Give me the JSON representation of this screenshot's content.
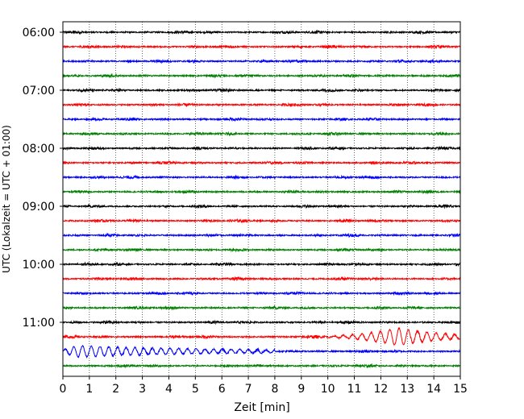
{
  "chart_data": {
    "type": "line",
    "xlabel": "Zeit  [min]",
    "ylabel": "UTC (Lokalzeit = UTC + 01:00)",
    "xlim": [
      0,
      15
    ],
    "x_ticks": [
      0,
      1,
      2,
      3,
      4,
      5,
      6,
      7,
      8,
      9,
      10,
      11,
      12,
      13,
      14,
      15
    ],
    "y_tick_labels": [
      "06:00",
      "07:00",
      "08:00",
      "09:00",
      "10:00",
      "11:00"
    ],
    "trace_interval_minutes": 15,
    "start_time": "06:00",
    "grid": "vertical dotted",
    "trace_colors": [
      "#000000",
      "#ff0000",
      "#0000ff",
      "#008000"
    ],
    "traces": [
      {
        "time": "06:00",
        "color": "#000000",
        "amplitude": 0.6
      },
      {
        "time": "06:15",
        "color": "#ff0000",
        "amplitude": 0.6
      },
      {
        "time": "06:30",
        "color": "#0000ff",
        "amplitude": 0.6
      },
      {
        "time": "06:45",
        "color": "#008000",
        "amplitude": 0.6
      },
      {
        "time": "07:00",
        "color": "#000000",
        "amplitude": 0.6
      },
      {
        "time": "07:15",
        "color": "#ff0000",
        "amplitude": 0.6
      },
      {
        "time": "07:30",
        "color": "#0000ff",
        "amplitude": 0.6
      },
      {
        "time": "07:45",
        "color": "#008000",
        "amplitude": 0.6
      },
      {
        "time": "08:00",
        "color": "#000000",
        "amplitude": 0.6
      },
      {
        "time": "08:15",
        "color": "#ff0000",
        "amplitude": 0.6
      },
      {
        "time": "08:30",
        "color": "#0000ff",
        "amplitude": 0.6
      },
      {
        "time": "08:45",
        "color": "#008000",
        "amplitude": 0.6
      },
      {
        "time": "09:00",
        "color": "#000000",
        "amplitude": 0.6
      },
      {
        "time": "09:15",
        "color": "#ff0000",
        "amplitude": 0.6
      },
      {
        "time": "09:30",
        "color": "#0000ff",
        "amplitude": 0.6
      },
      {
        "time": "09:45",
        "color": "#008000",
        "amplitude": 0.6
      },
      {
        "time": "10:00",
        "color": "#000000",
        "amplitude": 0.6
      },
      {
        "time": "10:15",
        "color": "#ff0000",
        "amplitude": 0.6
      },
      {
        "time": "10:30",
        "color": "#0000ff",
        "amplitude": 0.6
      },
      {
        "time": "10:45",
        "color": "#008000",
        "amplitude": 0.6
      },
      {
        "time": "11:00",
        "color": "#000000",
        "amplitude": 0.6
      },
      {
        "time": "11:15",
        "color": "#ff0000",
        "amplitude": 0.6,
        "event": {
          "start_min": 9.0,
          "end_min": 15.0,
          "peak_min": 12.7,
          "peak_amplitude": 11
        }
      },
      {
        "time": "11:30",
        "color": "#0000ff",
        "amplitude": 0.6,
        "event": {
          "start_min": 0.0,
          "end_min": 8.0,
          "peak_min": 0.6,
          "peak_amplitude": 7
        }
      },
      {
        "time": "11:45",
        "color": "#008000",
        "amplitude": 0.6
      }
    ]
  }
}
